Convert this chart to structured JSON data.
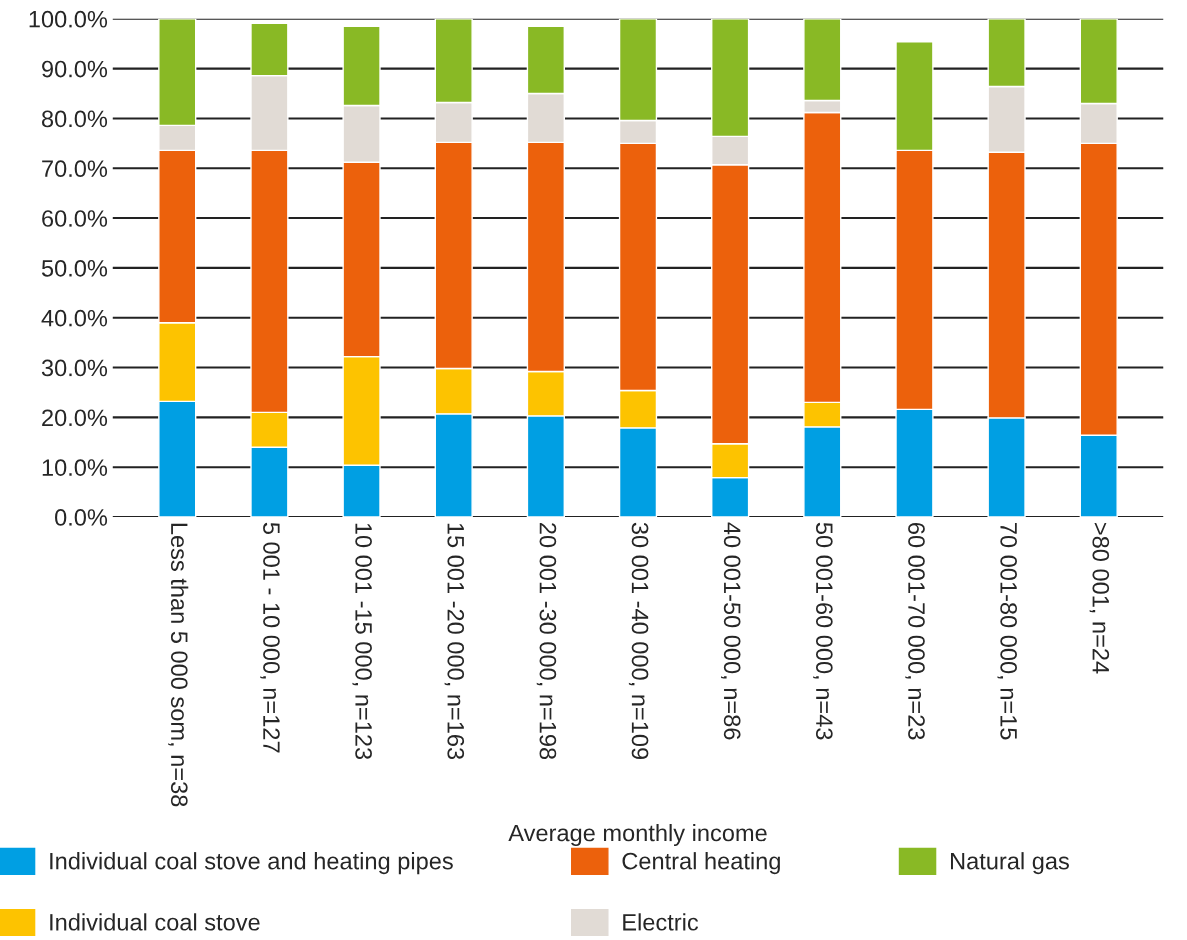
{
  "chart_data": {
    "type": "bar",
    "stacked": true,
    "xlabel": "Average monthly income",
    "categories": [
      "Less than 5 000 som, n=38",
      "5 001 - 10 000, n=127",
      "10 001 -15 000, n=123",
      "15 001 -20 000, n=163",
      "20 001 -30 000, n=198",
      "30 001 -40 000, n=109",
      "40 001-50 000, n=86",
      "50 001-60 000, n=43",
      "60 001-70 000, n=23",
      "70 001-80 000, n=15",
      ">80 001, n=24"
    ],
    "series": [
      {
        "name": "Individual coal stove and heating pipes",
        "color": "#009fe3",
        "values": [
          23.2,
          14.0,
          10.4,
          20.7,
          20.3,
          17.9,
          7.9,
          18.1,
          21.6,
          19.9,
          16.4
        ]
      },
      {
        "name": "Individual coal stove",
        "color": "#fdc300",
        "values": [
          15.8,
          7.0,
          21.8,
          9.1,
          8.9,
          7.5,
          6.8,
          4.9,
          null,
          null,
          null
        ]
      },
      {
        "name": "Central heating",
        "color": "#ec610c",
        "values": [
          34.6,
          52.6,
          39.0,
          45.4,
          46.0,
          49.6,
          56.0,
          58.2,
          52.0,
          53.3,
          58.6
        ]
      },
      {
        "name": "Electric",
        "color": "#e1dbd5",
        "values": [
          5.0,
          15.0,
          11.4,
          8.0,
          9.8,
          4.6,
          5.7,
          2.4,
          null,
          13.2,
          8.0
        ]
      },
      {
        "name": "Natural gas",
        "color": "#89b925",
        "values": [
          21.4,
          10.5,
          15.9,
          16.8,
          13.5,
          20.4,
          23.6,
          16.4,
          21.8,
          13.6,
          17.0
        ]
      }
    ],
    "ylim": [
      0,
      100
    ],
    "yticks": [
      {
        "value": 0,
        "label": "0.0%"
      },
      {
        "value": 10,
        "label": "10.0%"
      },
      {
        "value": 20,
        "label": "20.0%"
      },
      {
        "value": 30,
        "label": "30.0%"
      },
      {
        "value": 40,
        "label": "40.0%"
      },
      {
        "value": 50,
        "label": "50.0%"
      },
      {
        "value": 60,
        "label": "60.0%"
      },
      {
        "value": 70,
        "label": "70.0%"
      },
      {
        "value": 80,
        "label": "80.0%"
      },
      {
        "value": 90,
        "label": "90.0%"
      },
      {
        "value": 100,
        "label": "100.0%"
      }
    ],
    "grid": "y",
    "legend": "bottom"
  }
}
